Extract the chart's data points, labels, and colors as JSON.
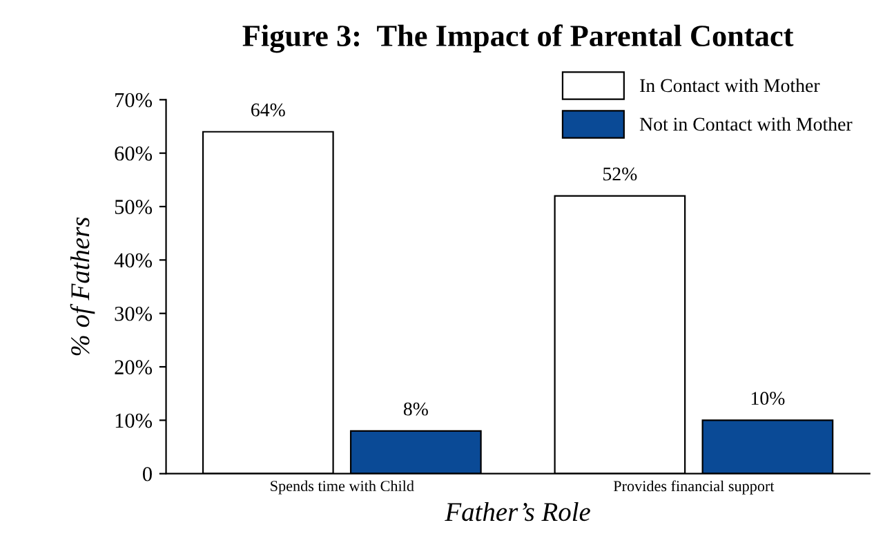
{
  "chart_data": {
    "type": "bar",
    "title": "Figure 3:  The Impact of Parental Contact",
    "xlabel": "Father’s Role",
    "ylabel": "% of Fathers",
    "categories": [
      "Spends time with Child",
      "Provides financial support"
    ],
    "series": [
      {
        "name": "In Contact with Mother",
        "color": "#ffffff",
        "values": [
          64,
          52
        ],
        "value_labels": [
          "64%",
          "52%"
        ]
      },
      {
        "name": "Not in Contact with Mother",
        "color": "#0a4a96",
        "values": [
          8,
          10
        ],
        "value_labels": [
          "8%",
          "10%"
        ]
      }
    ],
    "ylim": [
      0,
      70
    ],
    "yticks": [
      0,
      {
        "value": 10,
        "label": "10%"
      },
      {
        "value": 20,
        "label": "20%"
      },
      {
        "value": 30,
        "label": "30%"
      },
      {
        "value": 40,
        "label": "40%"
      },
      {
        "value": 50,
        "label": "50%"
      },
      {
        "value": 60,
        "label": "60%"
      },
      {
        "value": 70,
        "label": "70%"
      }
    ],
    "grid": false,
    "legend": "top right"
  }
}
